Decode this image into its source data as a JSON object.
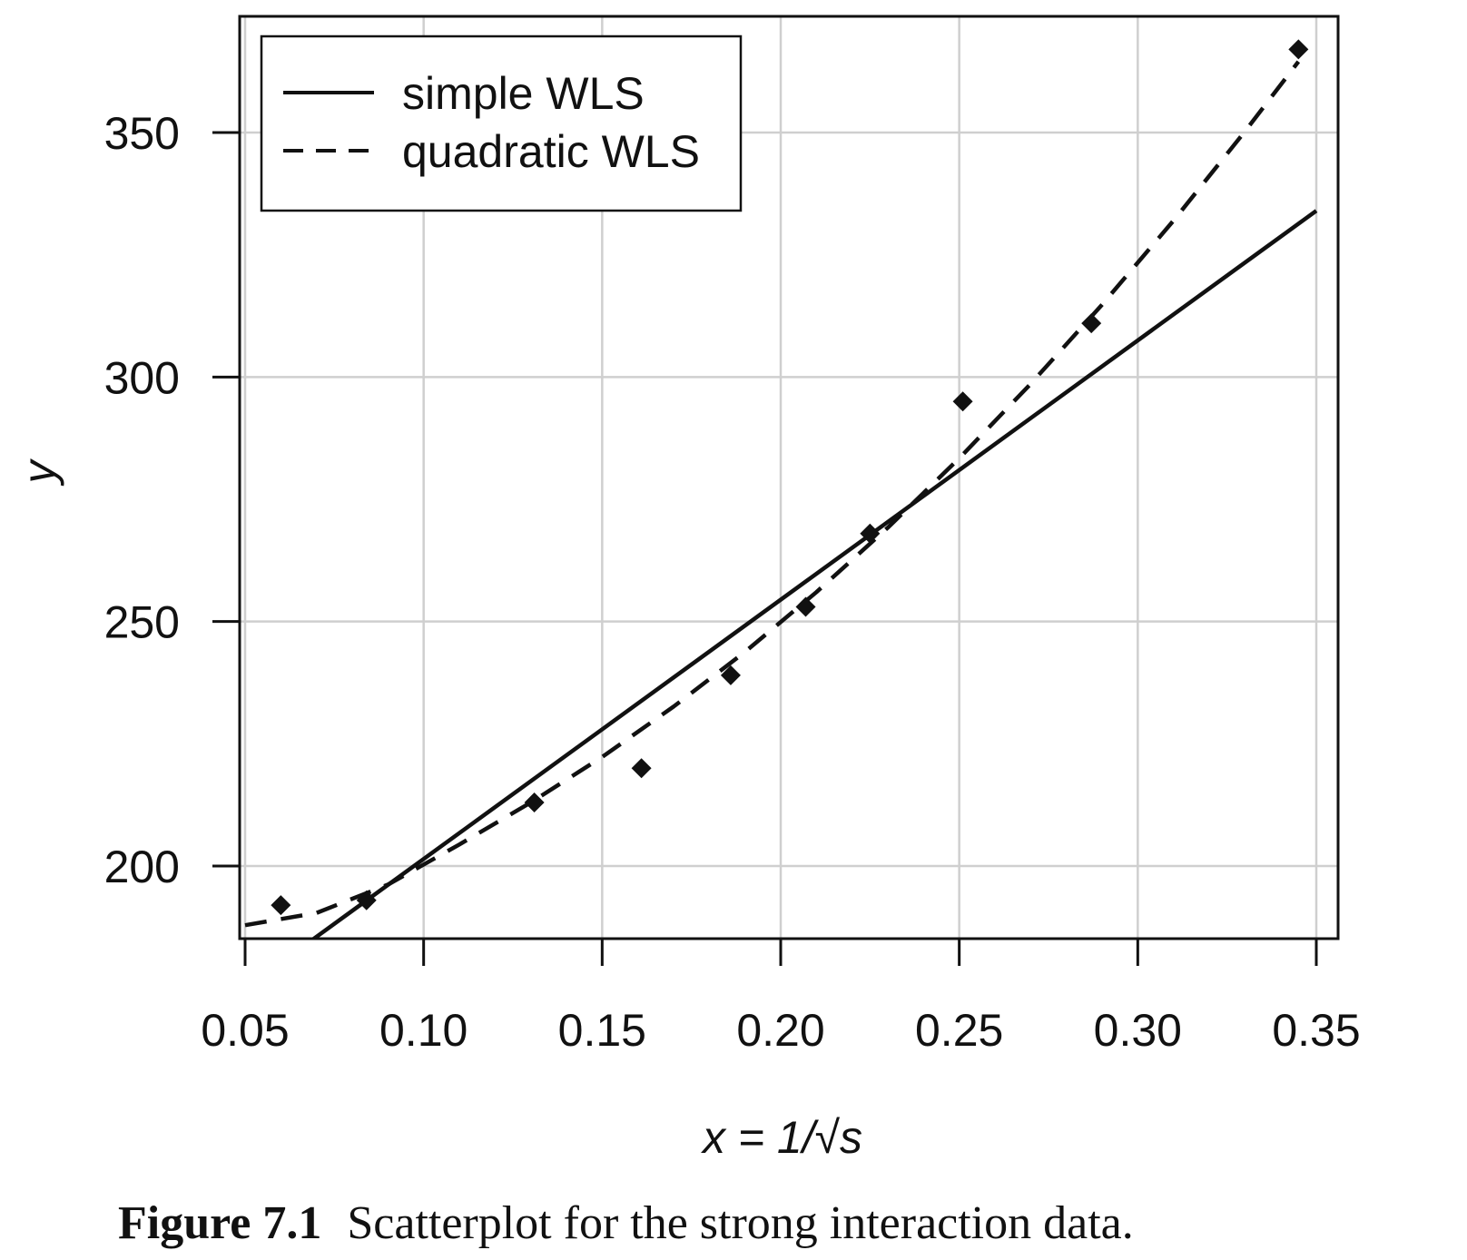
{
  "chart_data": {
    "type": "scatter",
    "xlabel": "x = 1/√s",
    "ylabel": "y",
    "xlim": [
      0.05,
      0.35
    ],
    "ylim": [
      185,
      375
    ],
    "xticks": [
      "0.05",
      "0.10",
      "0.15",
      "0.20",
      "0.25",
      "0.30",
      "0.35"
    ],
    "xtick_values": [
      0.05,
      0.1,
      0.15,
      0.2,
      0.25,
      0.3,
      0.35
    ],
    "yticks": [
      "200",
      "250",
      "300",
      "350"
    ],
    "ytick_values": [
      200,
      250,
      300,
      350
    ],
    "grid": true,
    "legend_position": "top-left",
    "points": {
      "marker": "diamond",
      "x": [
        0.06,
        0.084,
        0.131,
        0.161,
        0.186,
        0.207,
        0.225,
        0.251,
        0.287,
        0.345
      ],
      "y": [
        192,
        193,
        213,
        220,
        239,
        253,
        268,
        295,
        311,
        367
      ]
    },
    "series": [
      {
        "name": "simple WLS",
        "style": "solid",
        "x": [
          0.069,
          0.35
        ],
        "y": [
          185,
          334
        ]
      },
      {
        "name": "quadratic WLS",
        "style": "dashed",
        "x": [
          0.05,
          0.07,
          0.09,
          0.11,
          0.13,
          0.15,
          0.17,
          0.19,
          0.21,
          0.23,
          0.25,
          0.27,
          0.29,
          0.31,
          0.33,
          0.345
        ],
        "y": [
          187.9,
          190.4,
          196.2,
          204.4,
          213.0,
          222.3,
          232.6,
          243.8,
          256.0,
          269.2,
          283.4,
          298.6,
          314.8,
          332.0,
          350.2,
          364.5
        ]
      }
    ]
  },
  "caption": {
    "label": "Figure 7.1",
    "text": "Scatterplot for the strong interaction data."
  }
}
